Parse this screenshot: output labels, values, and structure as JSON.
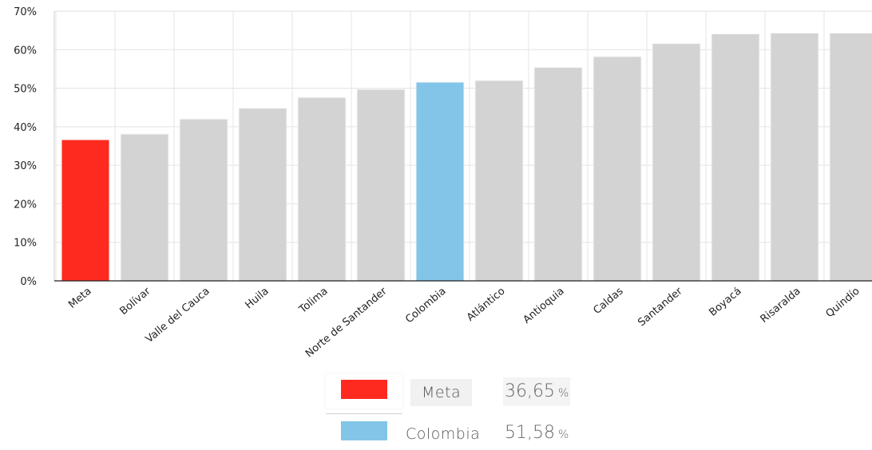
{
  "chart_data": {
    "type": "bar",
    "title": "",
    "xlabel": "",
    "ylabel": "",
    "ylim": [
      0,
      70
    ],
    "yticks": [
      "0%",
      "10%",
      "20%",
      "30%",
      "40%",
      "50%",
      "60%",
      "70%"
    ],
    "ytick_values": [
      0,
      10,
      20,
      30,
      40,
      50,
      60,
      70
    ],
    "grid": true,
    "categories": [
      "Meta",
      "Bolívar",
      "Valle del Cauca",
      "Huila",
      "Tolima",
      "Norte de Santander",
      "Colombia",
      "Atlántico",
      "Antioquia",
      "Caldas",
      "Santander",
      "Boyacá",
      "Risaralda",
      "Quindío"
    ],
    "values": [
      36.65,
      38.1,
      42.0,
      44.8,
      47.6,
      49.7,
      51.58,
      52.0,
      55.4,
      58.2,
      61.6,
      64.1,
      64.3,
      64.3
    ],
    "colors": [
      "#ff2a1f",
      "#d3d3d3",
      "#d3d3d3",
      "#d3d3d3",
      "#d3d3d3",
      "#d3d3d3",
      "#82c5e8",
      "#d3d3d3",
      "#d3d3d3",
      "#d3d3d3",
      "#d3d3d3",
      "#d3d3d3",
      "#d3d3d3",
      "#d3d3d3"
    ]
  },
  "legend": {
    "items": [
      {
        "name": "Meta",
        "value": "36,65",
        "unit": "%",
        "color": "#ff2a1f"
      },
      {
        "name": "Colombia",
        "value": "51,58",
        "unit": "%",
        "color": "#82c5e8"
      }
    ]
  }
}
